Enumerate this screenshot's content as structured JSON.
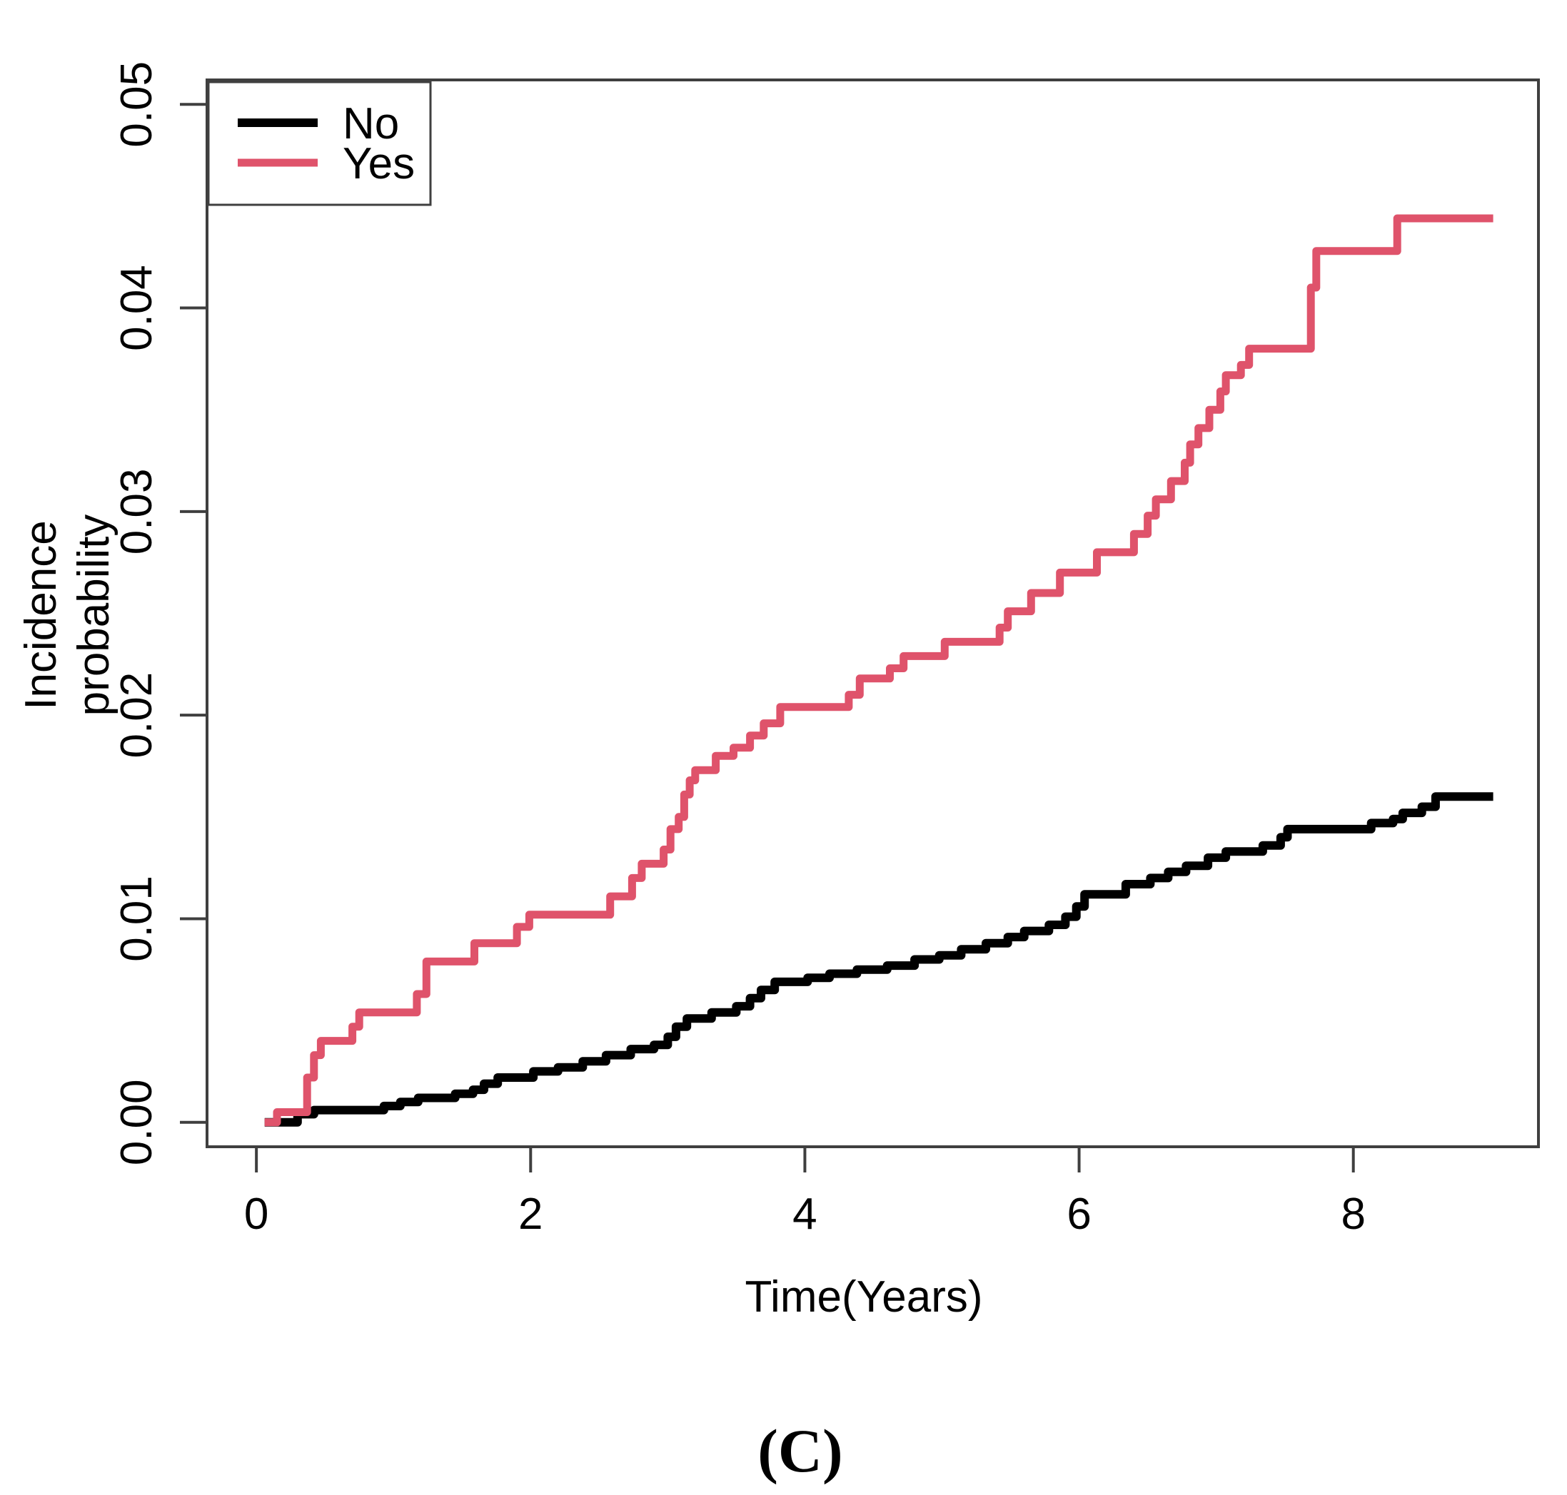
{
  "figure": {
    "caption": "(C)",
    "axis_color": "#3f3f3f",
    "background": "#ffffff"
  },
  "chart_data": {
    "type": "line",
    "subtype": "step-cumulative-incidence",
    "title": "",
    "xlabel": "Time(Years)",
    "ylabel": "Incidence probability",
    "ylabel_lines": [
      "Incidence",
      "probability"
    ],
    "xlim": [
      -0.36,
      9.35
    ],
    "ylim": [
      -0.0012,
      0.0512
    ],
    "xticks": [
      0,
      2,
      4,
      6,
      8
    ],
    "xtick_labels": [
      "0",
      "2",
      "4",
      "6",
      "8"
    ],
    "yticks": [
      0.0,
      0.01,
      0.02,
      0.03,
      0.04,
      0.05
    ],
    "ytick_labels": [
      "0.00",
      "0.01",
      "0.02",
      "0.03",
      "0.04",
      "0.05"
    ],
    "grid": false,
    "legend_position": "top-left",
    "series": [
      {
        "name": "No",
        "color": "#000000",
        "stroke_width": 12,
        "points": [
          [
            0.06,
            0.0
          ],
          [
            0.3,
            0.0004
          ],
          [
            0.42,
            0.0006
          ],
          [
            0.93,
            0.0008
          ],
          [
            1.05,
            0.001
          ],
          [
            1.18,
            0.0012
          ],
          [
            1.45,
            0.0014
          ],
          [
            1.58,
            0.0016
          ],
          [
            1.66,
            0.0019
          ],
          [
            1.76,
            0.0022
          ],
          [
            2.02,
            0.0025
          ],
          [
            2.2,
            0.0027
          ],
          [
            2.38,
            0.003
          ],
          [
            2.55,
            0.0033
          ],
          [
            2.73,
            0.0036
          ],
          [
            2.9,
            0.0038
          ],
          [
            3.0,
            0.0042
          ],
          [
            3.06,
            0.0047
          ],
          [
            3.14,
            0.0051
          ],
          [
            3.32,
            0.0054
          ],
          [
            3.5,
            0.0057
          ],
          [
            3.6,
            0.0061
          ],
          [
            3.68,
            0.0065
          ],
          [
            3.78,
            0.0069
          ],
          [
            4.02,
            0.0071
          ],
          [
            4.18,
            0.0073
          ],
          [
            4.38,
            0.0075
          ],
          [
            4.6,
            0.0077
          ],
          [
            4.8,
            0.008
          ],
          [
            4.98,
            0.0082
          ],
          [
            5.14,
            0.0085
          ],
          [
            5.32,
            0.0088
          ],
          [
            5.48,
            0.0091
          ],
          [
            5.6,
            0.0094
          ],
          [
            5.78,
            0.0097
          ],
          [
            5.9,
            0.0101
          ],
          [
            5.98,
            0.0106
          ],
          [
            6.04,
            0.0112
          ],
          [
            6.34,
            0.0117
          ],
          [
            6.52,
            0.012
          ],
          [
            6.65,
            0.0123
          ],
          [
            6.78,
            0.0126
          ],
          [
            6.94,
            0.013
          ],
          [
            7.07,
            0.0133
          ],
          [
            7.34,
            0.0136
          ],
          [
            7.47,
            0.014
          ],
          [
            7.52,
            0.0144
          ],
          [
            8.13,
            0.0147
          ],
          [
            8.29,
            0.0149
          ],
          [
            8.36,
            0.0152
          ],
          [
            8.5,
            0.0155
          ],
          [
            8.6,
            0.016
          ],
          [
            9.02,
            0.016
          ]
        ]
      },
      {
        "name": "Yes",
        "color": "#df536b",
        "stroke_width": 11,
        "points": [
          [
            0.06,
            0.0
          ],
          [
            0.15,
            0.0005
          ],
          [
            0.37,
            0.0022
          ],
          [
            0.42,
            0.0033
          ],
          [
            0.47,
            0.004
          ],
          [
            0.7,
            0.0047
          ],
          [
            0.75,
            0.0054
          ],
          [
            1.17,
            0.0063
          ],
          [
            1.24,
            0.0079
          ],
          [
            1.59,
            0.0088
          ],
          [
            1.9,
            0.0096
          ],
          [
            1.99,
            0.0102
          ],
          [
            2.58,
            0.0111
          ],
          [
            2.74,
            0.012
          ],
          [
            2.81,
            0.0127
          ],
          [
            2.97,
            0.0134
          ],
          [
            3.02,
            0.0144
          ],
          [
            3.08,
            0.015
          ],
          [
            3.12,
            0.0161
          ],
          [
            3.16,
            0.0168
          ],
          [
            3.2,
            0.0173
          ],
          [
            3.35,
            0.018
          ],
          [
            3.48,
            0.0184
          ],
          [
            3.6,
            0.019
          ],
          [
            3.7,
            0.0196
          ],
          [
            3.82,
            0.0204
          ],
          [
            4.32,
            0.021
          ],
          [
            4.4,
            0.0218
          ],
          [
            4.62,
            0.0223
          ],
          [
            4.72,
            0.0229
          ],
          [
            5.02,
            0.0236
          ],
          [
            5.42,
            0.0243
          ],
          [
            5.48,
            0.0251
          ],
          [
            5.65,
            0.026
          ],
          [
            5.86,
            0.027
          ],
          [
            6.13,
            0.028
          ],
          [
            6.4,
            0.0289
          ],
          [
            6.5,
            0.0298
          ],
          [
            6.56,
            0.0306
          ],
          [
            6.67,
            0.0315
          ],
          [
            6.77,
            0.0324
          ],
          [
            6.81,
            0.0333
          ],
          [
            6.87,
            0.0341
          ],
          [
            6.95,
            0.035
          ],
          [
            7.03,
            0.0359
          ],
          [
            7.07,
            0.0367
          ],
          [
            7.18,
            0.0372
          ],
          [
            7.24,
            0.038
          ],
          [
            7.69,
            0.041
          ],
          [
            7.73,
            0.0428
          ],
          [
            8.32,
            0.0444
          ],
          [
            9.02,
            0.0444
          ]
        ]
      }
    ],
    "legend": {
      "entries": [
        {
          "label": "No",
          "color": "#000000"
        },
        {
          "label": "Yes",
          "color": "#df536b"
        }
      ]
    }
  }
}
